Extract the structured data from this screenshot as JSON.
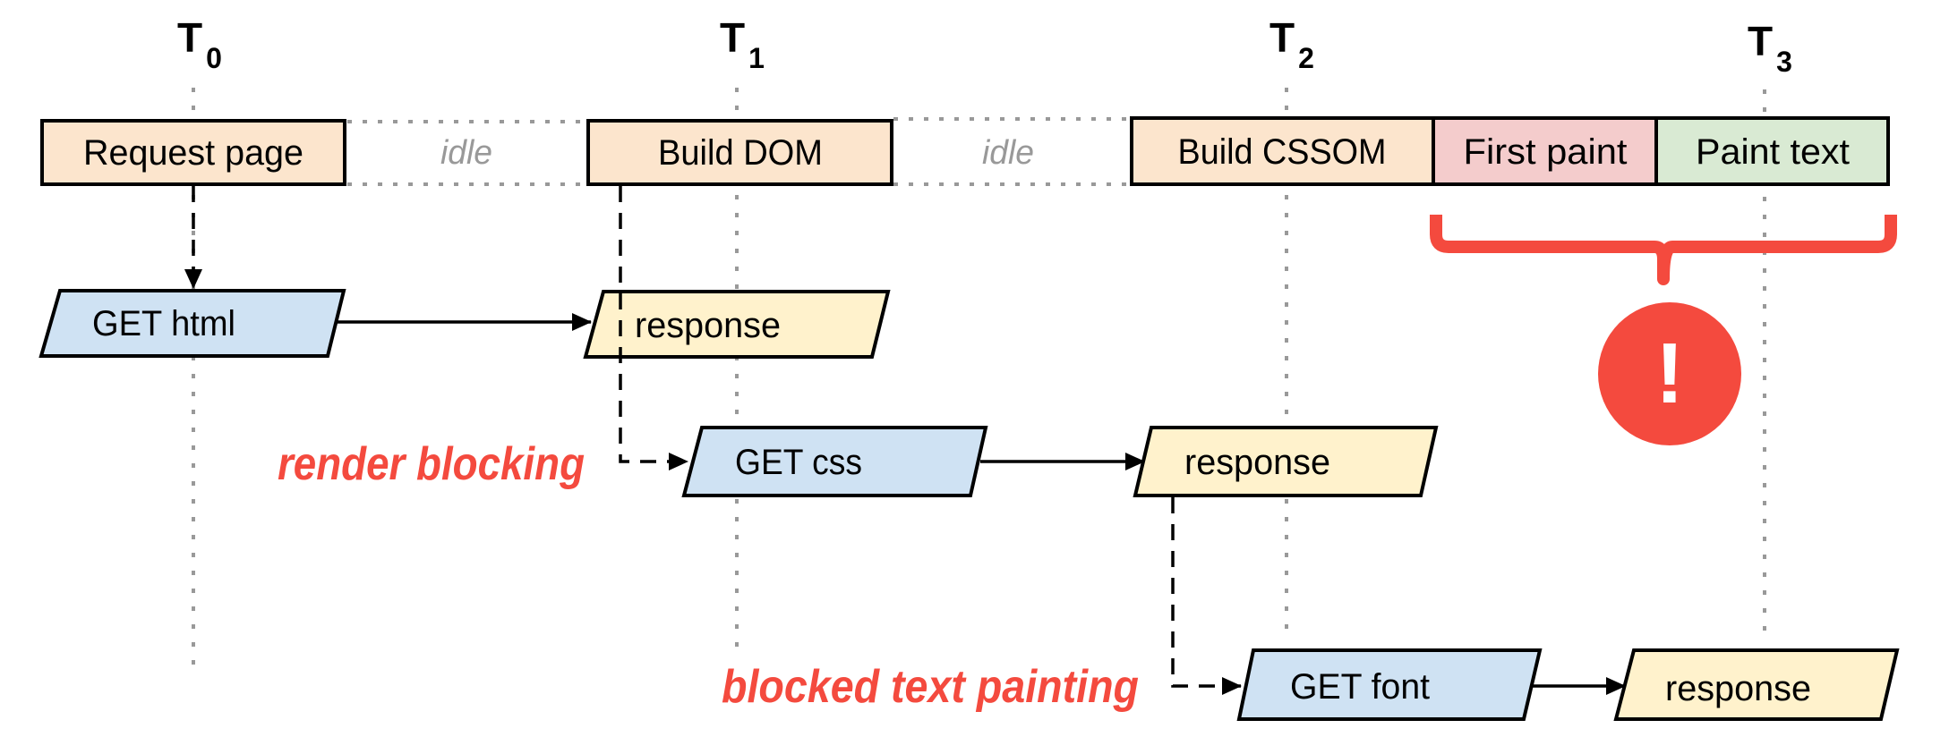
{
  "timeline": {
    "markers": [
      {
        "label": "T",
        "sub": "0"
      },
      {
        "label": "T",
        "sub": "1"
      },
      {
        "label": "T",
        "sub": "2"
      },
      {
        "label": "T",
        "sub": "3"
      }
    ]
  },
  "main_thread": {
    "request_page": "Request page",
    "idle_1": "idle",
    "build_dom": "Build DOM",
    "idle_2": "idle",
    "build_cssom": "Build CSSOM",
    "first_paint": "First paint",
    "paint_text": "Paint text"
  },
  "network": {
    "get_html": "GET html",
    "html_response": "response",
    "get_css": "GET css",
    "css_response": "response",
    "get_font": "GET font",
    "font_response": "response"
  },
  "annotations": {
    "render_blocking": "render blocking",
    "blocked_text_painting": "blocked text painting",
    "warning_symbol": "!"
  },
  "colors": {
    "task": "#fce5cd",
    "first_paint": "#f4cccc",
    "paint_text": "#d9ead3",
    "request": "#cfe2f3",
    "response": "#fff2cc",
    "warning": "#f44a3e",
    "idle": "#999999"
  }
}
